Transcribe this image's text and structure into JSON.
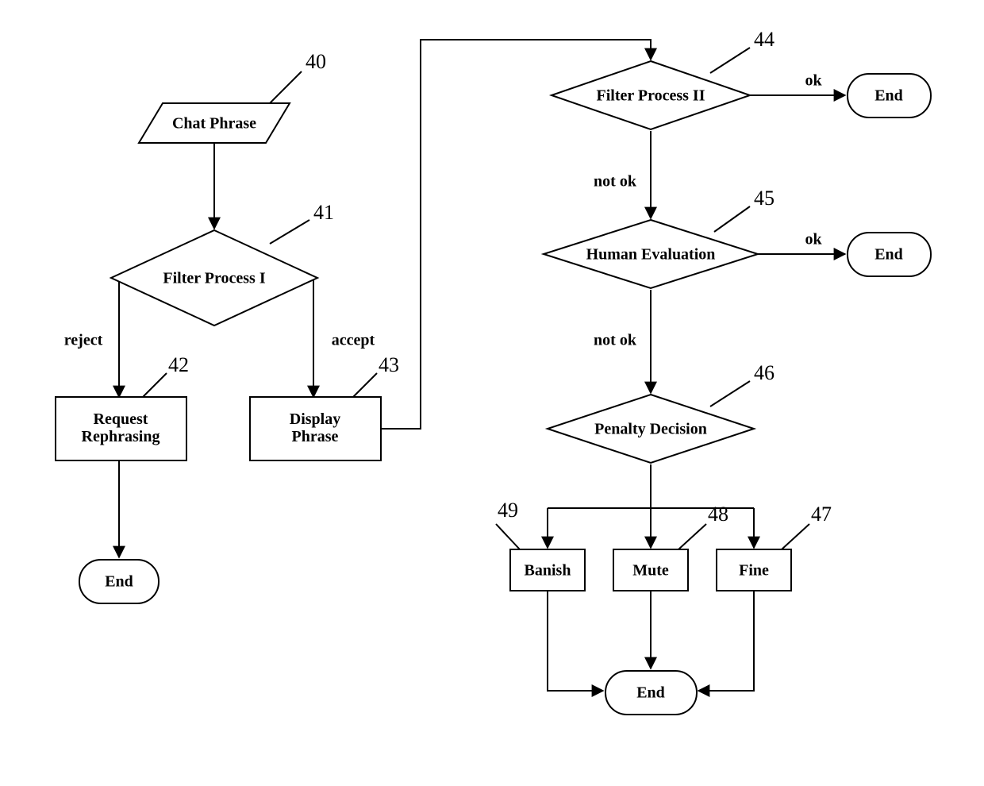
{
  "flowchart": {
    "type": "flowchart",
    "background_color": "#ffffff",
    "stroke_color": "#000000",
    "stroke_width": 2,
    "node_fill": "#ffffff",
    "font_family": "Times New Roman",
    "node_fontsize": 20,
    "edge_fontsize": 20,
    "ref_fontsize": 26,
    "arrowhead_size": 12,
    "nodes": {
      "n40": {
        "label": "Chat Phrase",
        "ref": "40",
        "shape": "parallelogram"
      },
      "n41": {
        "label": "Filter Process I",
        "ref": "41",
        "shape": "diamond"
      },
      "n42": {
        "label": "Request\nRephrasing",
        "ref": "42",
        "shape": "rect"
      },
      "n43": {
        "label": "Display\nPhrase",
        "ref": "43",
        "shape": "rect"
      },
      "n44": {
        "label": "Filter Process II",
        "ref": "44",
        "shape": "diamond"
      },
      "n45": {
        "label": "Human Evaluation",
        "ref": "45",
        "shape": "diamond"
      },
      "n46": {
        "label": "Penalty Decision",
        "ref": "46",
        "shape": "diamond"
      },
      "n47": {
        "label": "Fine",
        "ref": "47",
        "shape": "rect"
      },
      "n48": {
        "label": "Mute",
        "ref": "48",
        "shape": "rect"
      },
      "n49": {
        "label": "Banish",
        "ref": "49",
        "shape": "rect"
      },
      "end1": {
        "label": "End",
        "shape": "terminator"
      },
      "end2": {
        "label": "End",
        "shape": "terminator"
      },
      "end3": {
        "label": "End",
        "shape": "terminator"
      },
      "end4": {
        "label": "End",
        "shape": "terminator"
      }
    },
    "edge_labels": {
      "reject": "reject",
      "accept": "accept",
      "ok": "ok",
      "not_ok": "not ok"
    }
  }
}
